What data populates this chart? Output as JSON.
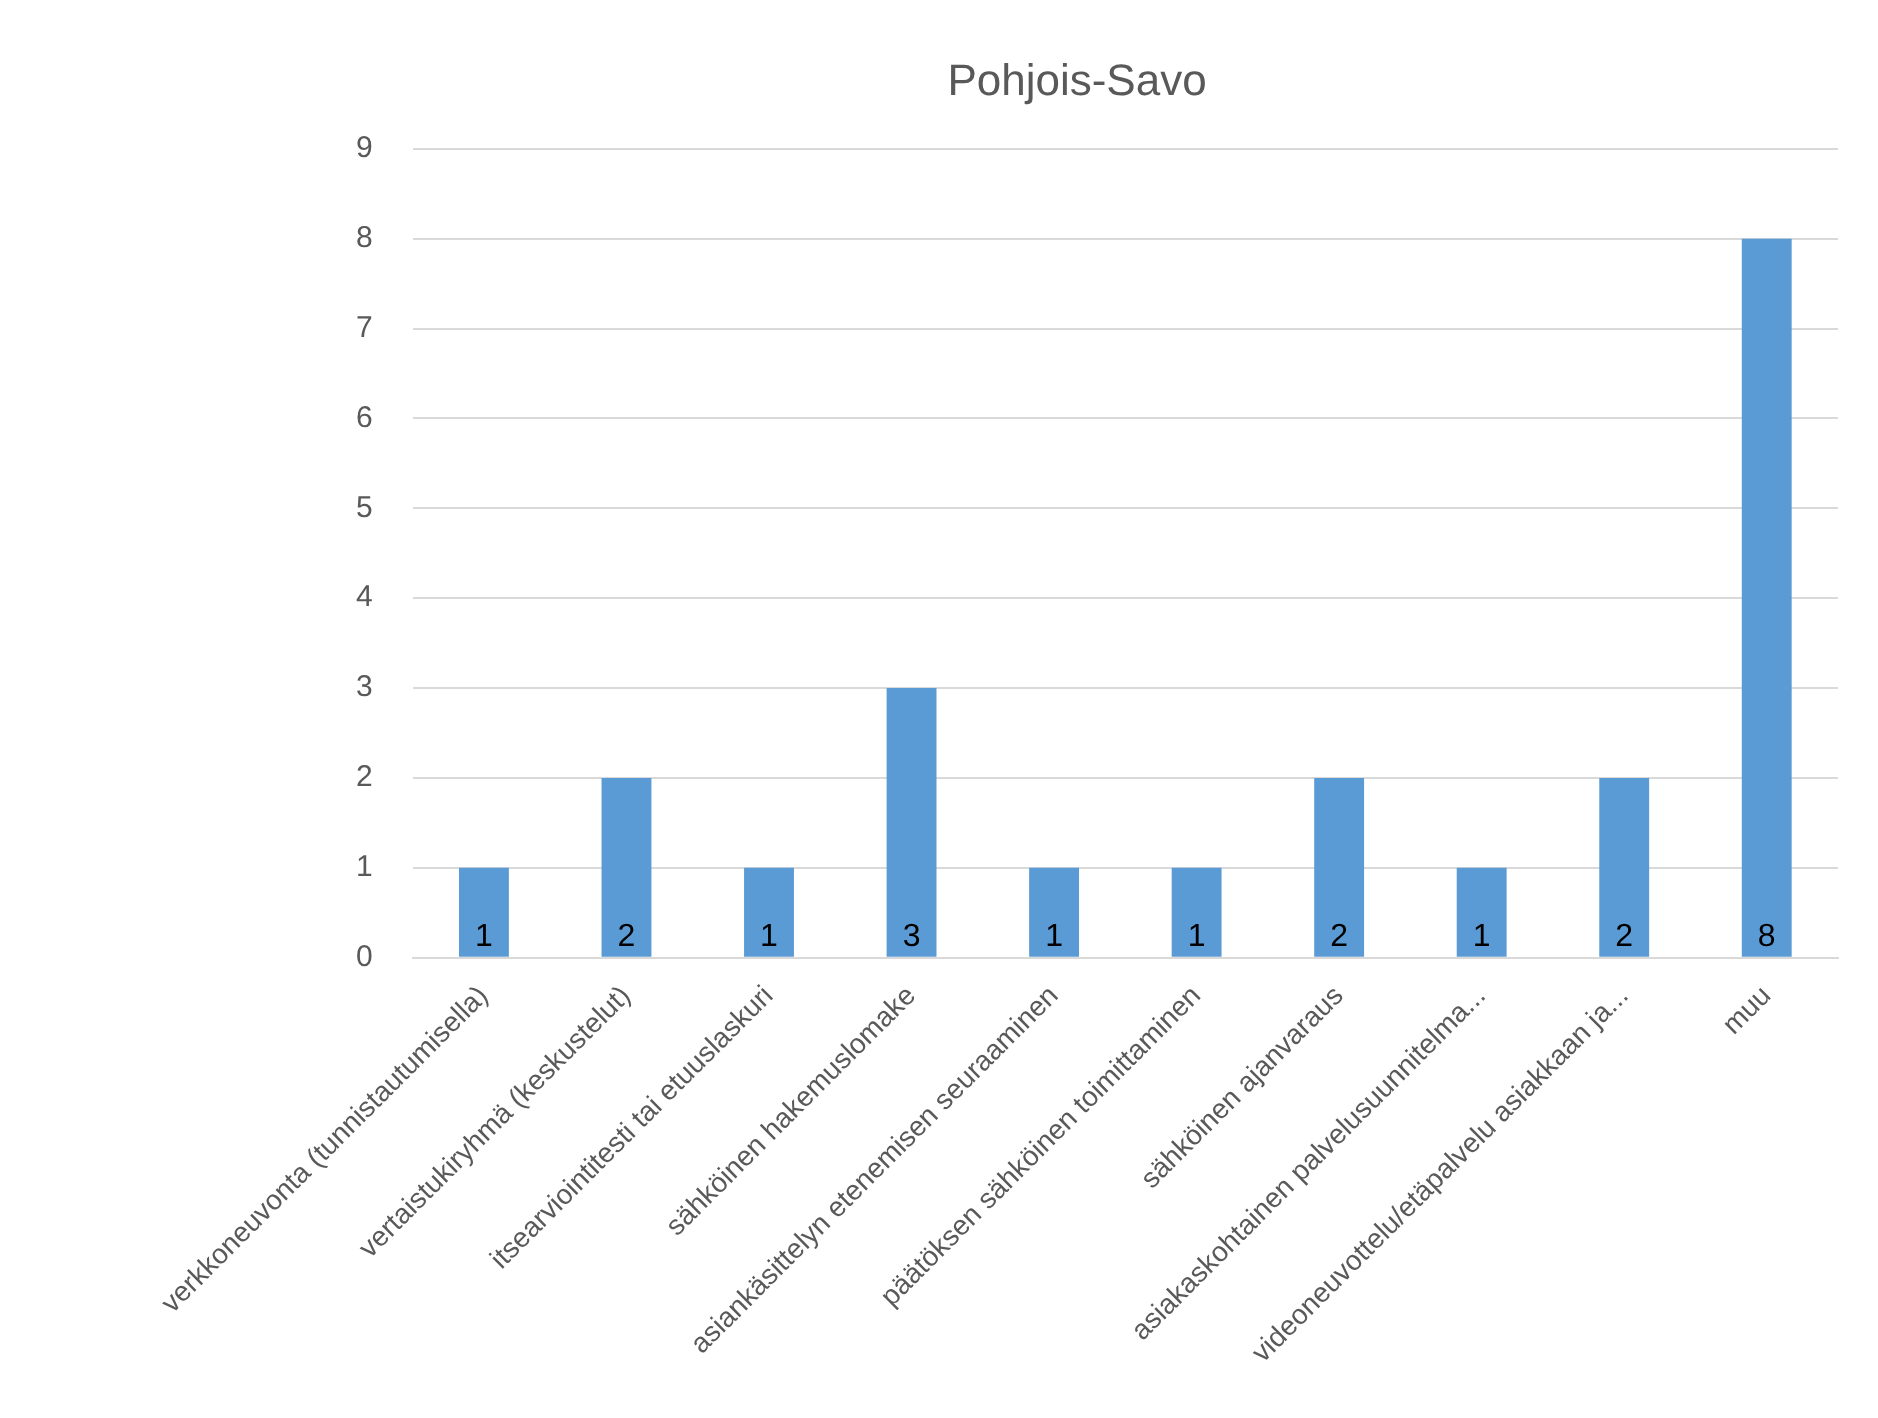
{
  "chart_data": {
    "type": "bar",
    "title": "Pohjois-Savo",
    "categories": [
      "verkkoneuvonta (tunnistautumisella)",
      "vertaistukiryhmä (keskustelut)",
      "itsearviointitesti tai etuuslaskuri",
      "sähköinen hakemuslomake",
      "asiankäsittelyn etenemisen seuraaminen",
      "päätöksen sähköinen toimittaminen",
      "sähköinen ajanvaraus",
      "asiakaskohtainen palvelusuunnitelma...",
      "videoneuvottelu/etäpalvelu asiakkaan ja...",
      "muu"
    ],
    "values": [
      1,
      2,
      1,
      3,
      1,
      1,
      2,
      1,
      2,
      8
    ],
    "color": "#5b9bd5",
    "ylim": [
      0,
      9
    ],
    "yticks": [
      0,
      1,
      2,
      3,
      4,
      5,
      6,
      7,
      8,
      9
    ],
    "grid": "y",
    "data_labels": true,
    "legend": false
  }
}
